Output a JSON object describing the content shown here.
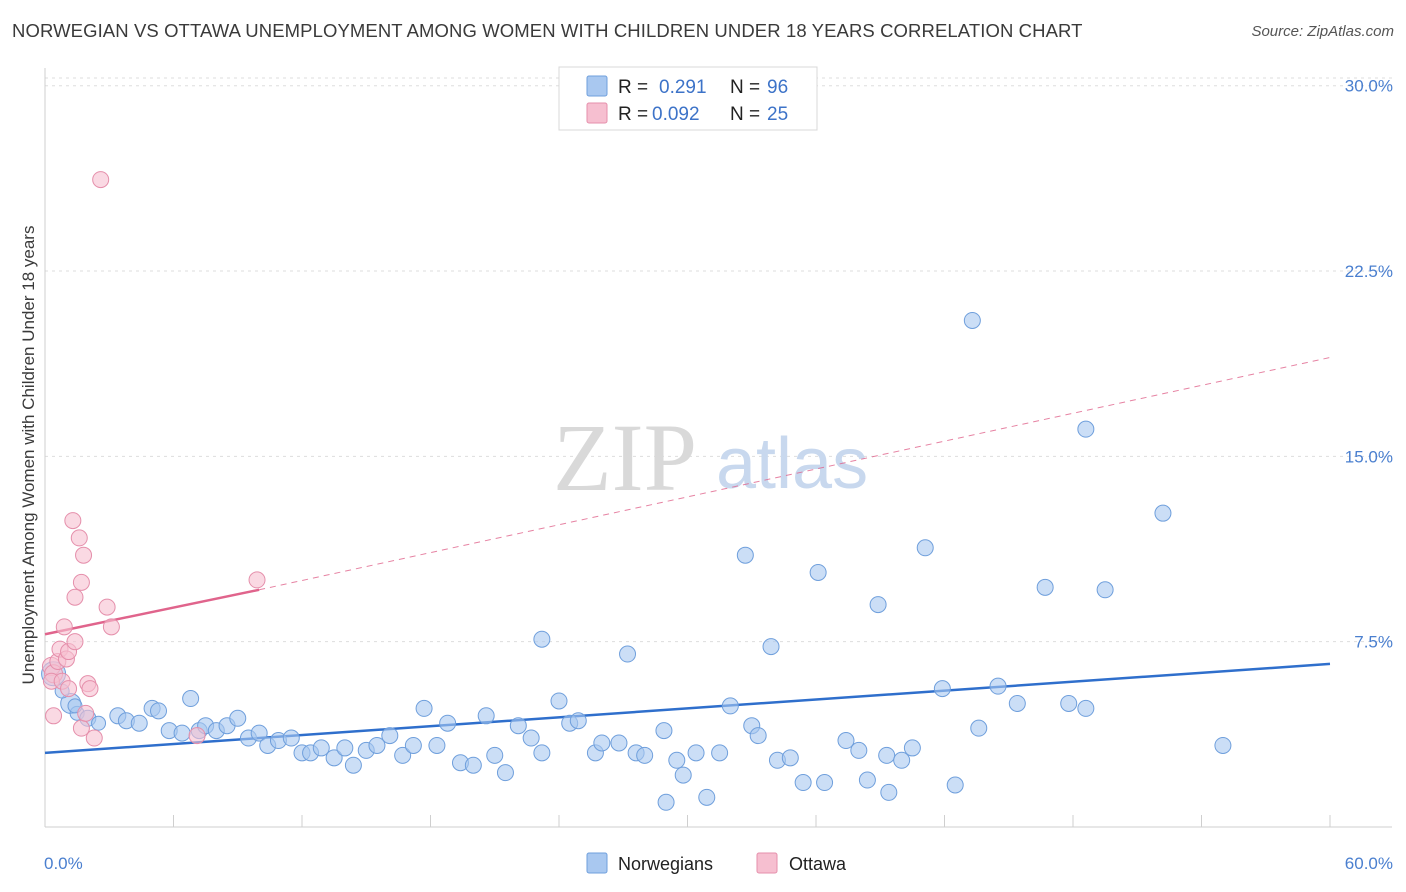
{
  "title": "NORWEGIAN VS OTTAWA UNEMPLOYMENT AMONG WOMEN WITH CHILDREN UNDER 18 YEARS CORRELATION CHART",
  "source": "Source: ZipAtlas.com",
  "watermark": {
    "zip": "ZIP",
    "atlas": "atlas"
  },
  "colors": {
    "blue_fill": "#a9c8f0",
    "blue_stroke": "#6f9fdc",
    "blue_line": "#2f6fcc",
    "pink_fill": "#f6bfd0",
    "pink_stroke": "#e58fab",
    "pink_line": "#e0648c",
    "grid": "#dddddd",
    "axis_text": "#4a7fcf"
  },
  "chart_data": {
    "type": "scatter",
    "title": "NORWEGIAN VS OTTAWA UNEMPLOYMENT AMONG WOMEN WITH CHILDREN UNDER 18 YEARS CORRELATION CHART",
    "xlabel": "",
    "ylabel": "Unemployment Among Women with Children Under 18 years",
    "xlim": [
      0,
      60
    ],
    "ylim": [
      0,
      31
    ],
    "x_tick_labels": [
      "0.0%",
      "60.0%"
    ],
    "y_ticks": [
      7.5,
      15.0,
      22.5,
      30.0
    ],
    "y_tick_labels": [
      "7.5%",
      "15.0%",
      "22.5%",
      "30.0%"
    ],
    "grid": true,
    "legend_position": "top-center",
    "legend": [
      {
        "name": "Norwegians",
        "r_label": "R =",
        "r_value": "0.291",
        "n_label": "N =",
        "n_value": "96"
      },
      {
        "name": "Ottawa",
        "r_label": "R =",
        "r_value": "0.092",
        "n_label": "N =",
        "n_value": "25"
      }
    ],
    "series": [
      {
        "name": "Norwegians",
        "color": "blue",
        "trend": {
          "x": [
            0,
            60
          ],
          "y": [
            3.0,
            6.6
          ],
          "style": "solid"
        },
        "points": [
          [
            0.4,
            6.2,
            12
          ],
          [
            1.2,
            5.0,
            10
          ],
          [
            1.5,
            4.6,
            7
          ],
          [
            2.0,
            4.4,
            8
          ],
          [
            2.5,
            4.2,
            7
          ],
          [
            3.4,
            4.5,
            8
          ],
          [
            3.8,
            4.3,
            8
          ],
          [
            4.4,
            4.2,
            8
          ],
          [
            5.0,
            4.8,
            8
          ],
          [
            5.3,
            4.7,
            8
          ],
          [
            5.8,
            3.9,
            8
          ],
          [
            6.4,
            3.8,
            8
          ],
          [
            6.8,
            5.2,
            8
          ],
          [
            7.2,
            3.9,
            8
          ],
          [
            7.5,
            4.1,
            8
          ],
          [
            8.0,
            3.9,
            8
          ],
          [
            8.5,
            4.1,
            8
          ],
          [
            9.0,
            4.4,
            8
          ],
          [
            9.5,
            3.6,
            8
          ],
          [
            10.0,
            3.8,
            8
          ],
          [
            10.4,
            3.3,
            8
          ],
          [
            10.9,
            3.5,
            8
          ],
          [
            11.5,
            3.6,
            8
          ],
          [
            12.0,
            3.0,
            8
          ],
          [
            12.4,
            3.0,
            8
          ],
          [
            12.9,
            3.2,
            8
          ],
          [
            13.5,
            2.8,
            8
          ],
          [
            14.0,
            3.2,
            8
          ],
          [
            14.4,
            2.5,
            8
          ],
          [
            15.0,
            3.1,
            8
          ],
          [
            15.5,
            3.3,
            8
          ],
          [
            16.1,
            3.7,
            8
          ],
          [
            16.7,
            2.9,
            8
          ],
          [
            17.2,
            3.3,
            8
          ],
          [
            17.7,
            4.8,
            8
          ],
          [
            18.3,
            3.3,
            8
          ],
          [
            18.8,
            4.2,
            8
          ],
          [
            19.4,
            2.6,
            8
          ],
          [
            20.0,
            2.5,
            8
          ],
          [
            20.6,
            4.5,
            8
          ],
          [
            21.0,
            2.9,
            8
          ],
          [
            21.5,
            2.2,
            8
          ],
          [
            22.1,
            4.1,
            8
          ],
          [
            22.7,
            3.6,
            8
          ],
          [
            23.2,
            3.0,
            8
          ],
          [
            23.2,
            7.6,
            8
          ],
          [
            24.0,
            5.1,
            8
          ],
          [
            24.5,
            4.2,
            8
          ],
          [
            24.9,
            4.3,
            8
          ],
          [
            25.7,
            3.0,
            8
          ],
          [
            26.0,
            3.4,
            8
          ],
          [
            26.8,
            3.4,
            8
          ],
          [
            27.2,
            7.0,
            8
          ],
          [
            27.6,
            3.0,
            8
          ],
          [
            28.0,
            2.9,
            8
          ],
          [
            28.9,
            3.9,
            8
          ],
          [
            29.0,
            1.0,
            8
          ],
          [
            29.5,
            2.7,
            8
          ],
          [
            29.8,
            2.1,
            8
          ],
          [
            30.4,
            3.0,
            8
          ],
          [
            30.9,
            1.2,
            8
          ],
          [
            31.5,
            3.0,
            8
          ],
          [
            32.0,
            4.9,
            8
          ],
          [
            32.7,
            11.0,
            8
          ],
          [
            33.0,
            4.1,
            8
          ],
          [
            33.3,
            3.7,
            8
          ],
          [
            33.9,
            7.3,
            8
          ],
          [
            34.2,
            2.7,
            8
          ],
          [
            34.8,
            2.8,
            8
          ],
          [
            35.4,
            1.8,
            8
          ],
          [
            36.1,
            10.3,
            8
          ],
          [
            36.4,
            1.8,
            8
          ],
          [
            37.4,
            3.5,
            8
          ],
          [
            38.0,
            3.1,
            8
          ],
          [
            38.4,
            1.9,
            8
          ],
          [
            38.9,
            9.0,
            8
          ],
          [
            39.3,
            2.9,
            8
          ],
          [
            39.4,
            1.4,
            8
          ],
          [
            40.0,
            2.7,
            8
          ],
          [
            40.5,
            3.2,
            8
          ],
          [
            41.1,
            11.3,
            8
          ],
          [
            41.9,
            5.6,
            8
          ],
          [
            42.5,
            1.7,
            8
          ],
          [
            43.3,
            20.5,
            8
          ],
          [
            43.6,
            4.0,
            8
          ],
          [
            44.5,
            5.7,
            8
          ],
          [
            45.4,
            5.0,
            8
          ],
          [
            46.7,
            9.7,
            8
          ],
          [
            47.8,
            5.0,
            8
          ],
          [
            48.6,
            4.8,
            8
          ],
          [
            48.6,
            16.1,
            8
          ],
          [
            49.5,
            9.6,
            8
          ],
          [
            52.2,
            12.7,
            8
          ],
          [
            55.0,
            3.3,
            8
          ],
          [
            0.8,
            5.5,
            7
          ],
          [
            1.4,
            4.9,
            7
          ]
        ]
      },
      {
        "name": "Ottawa",
        "color": "pink",
        "trend": {
          "x": [
            0,
            10
          ],
          "y": [
            7.8,
            9.6
          ],
          "style": "solid",
          "extended": {
            "x": [
              10,
              60
            ],
            "y": [
              9.6,
              19.0
            ],
            "style": "dashed"
          }
        },
        "points": [
          [
            0.3,
            6.5,
            9
          ],
          [
            0.4,
            6.2,
            9
          ],
          [
            0.3,
            5.9,
            8
          ],
          [
            0.4,
            4.5,
            8
          ],
          [
            0.6,
            6.7,
            8
          ],
          [
            0.7,
            7.2,
            8
          ],
          [
            0.8,
            5.9,
            8
          ],
          [
            0.9,
            8.1,
            8
          ],
          [
            1.0,
            6.8,
            8
          ],
          [
            1.1,
            7.1,
            8
          ],
          [
            1.1,
            5.6,
            8
          ],
          [
            1.3,
            12.4,
            8
          ],
          [
            1.4,
            9.3,
            8
          ],
          [
            1.4,
            7.5,
            8
          ],
          [
            1.6,
            11.7,
            8
          ],
          [
            1.7,
            9.9,
            8
          ],
          [
            1.7,
            4.0,
            8
          ],
          [
            1.8,
            11.0,
            8
          ],
          [
            1.9,
            4.6,
            8
          ],
          [
            2.0,
            5.8,
            8
          ],
          [
            2.1,
            5.6,
            8
          ],
          [
            2.3,
            3.6,
            8
          ],
          [
            2.9,
            8.9,
            8
          ],
          [
            3.1,
            8.1,
            8
          ],
          [
            7.1,
            3.7,
            8
          ],
          [
            9.9,
            10.0,
            8
          ],
          [
            2.6,
            26.2,
            8
          ]
        ]
      }
    ]
  }
}
